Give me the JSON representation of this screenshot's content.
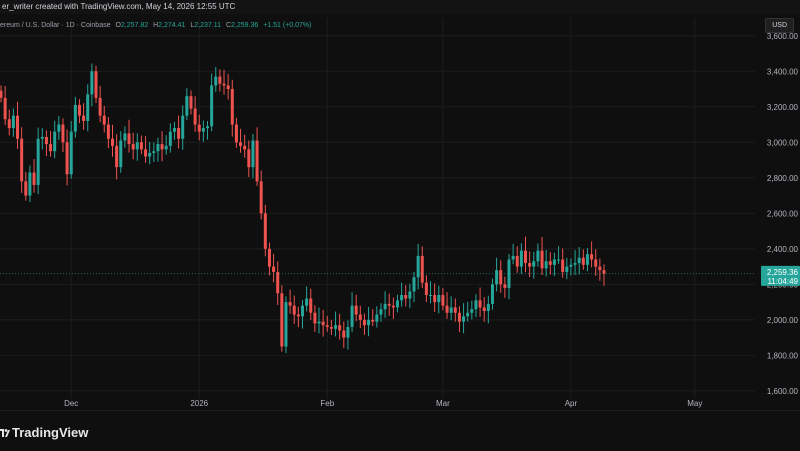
{
  "header": {
    "caption": "er_writer created with TradingView.com, May 14, 2026 12:55 UTC"
  },
  "legend": {
    "symbol": "ereum / U.S. Dollar · 1D · Coinbase",
    "o_label": "O",
    "o_value": "2,257.82",
    "h_label": "H",
    "h_value": "2,274.41",
    "l_label": "L",
    "l_value": "2,237.11",
    "c_label": "C",
    "c_value": "2,259.36",
    "change": "+1.51 (+0.07%)"
  },
  "currency": "USD",
  "brand": "TradingView",
  "colors": {
    "up": "#26a69a",
    "down": "#ef5350",
    "background": "#0f0f0f",
    "grid": "#1d1d1d",
    "last_price_bg": "#26a69a"
  },
  "chart_data": {
    "type": "candlestick",
    "y_ticks": [
      "3,600.00",
      "3,400.00",
      "3,200.00",
      "3,000.00",
      "2,800.00",
      "2,600.00",
      "2,400.00",
      "2,200.00",
      "2,000.00",
      "1,800.00",
      "1,600.00"
    ],
    "y_tick_values": [
      3600,
      3400,
      3200,
      3000,
      2800,
      2600,
      2400,
      2200,
      2000,
      1800,
      1600
    ],
    "x_ticks": [
      {
        "label": "Dec",
        "day": 17
      },
      {
        "label": "2026",
        "day": 48
      },
      {
        "label": "Feb",
        "day": 79
      },
      {
        "label": "Mar",
        "day": 107
      },
      {
        "label": "Apr",
        "day": 138
      },
      {
        "label": "May",
        "day": 168
      }
    ],
    "ylim": [
      1560,
      3700
    ],
    "last_price": "2,259.36",
    "last_price_value": 2259.36,
    "countdown": "11:04:49",
    "closes": [
      3250,
      3130,
      3080,
      3150,
      3020,
      2780,
      2700,
      2830,
      2760,
      3020,
      3030,
      2990,
      2950,
      3060,
      3100,
      3000,
      2820,
      3060,
      3210,
      3150,
      3120,
      3270,
      3400,
      3250,
      3150,
      3100,
      3020,
      2980,
      2860,
      3010,
      3050,
      2990,
      2960,
      3000,
      2960,
      2920,
      2940,
      2950,
      2990,
      2960,
      2980,
      3060,
      3080,
      3020,
      3150,
      3260,
      3190,
      3100,
      3060,
      3080,
      3090,
      3320,
      3370,
      3330,
      3320,
      3300,
      3100,
      3000,
      2980,
      2960,
      2860,
      3010,
      2780,
      2600,
      2400,
      2300,
      2270,
      2150,
      1850,
      2100,
      2080,
      2030,
      2020,
      2080,
      2120,
      2040,
      1980,
      1990,
      1970,
      1960,
      1950,
      1970,
      1940,
      1900,
      1960,
      2080,
      2030,
      2000,
      1970,
      2000,
      1990,
      2030,
      2060,
      2090,
      2080,
      2070,
      2110,
      2140,
      2120,
      2160,
      2240,
      2360,
      2210,
      2140,
      2140,
      2100,
      2140,
      2080,
      2040,
      2070,
      2040,
      1990,
      2020,
      2040,
      2060,
      2110,
      2070,
      2050,
      2090,
      2200,
      2280,
      2200,
      2180,
      2340,
      2360,
      2300,
      2390,
      2320,
      2300,
      2330,
      2390,
      2290,
      2330,
      2310,
      2340,
      2340,
      2270,
      2300,
      2310,
      2320,
      2350,
      2310,
      2370,
      2340,
      2300,
      2280,
      2260
    ],
    "opens": null
  }
}
